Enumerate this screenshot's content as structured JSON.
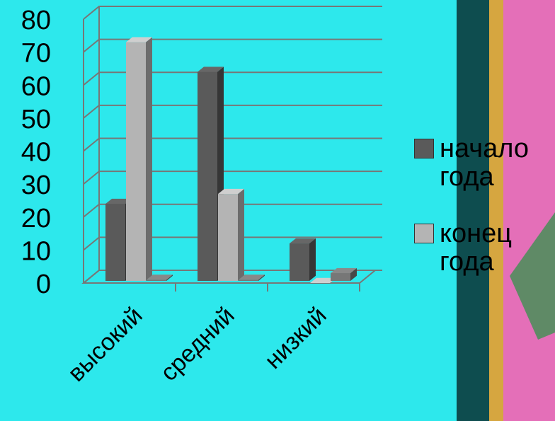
{
  "chart_data": {
    "type": "bar3d",
    "categories": [
      "высокий",
      "средний",
      "низкий"
    ],
    "series": [
      {
        "name": "начало года",
        "color": "#5a5a5a",
        "values": [
          24,
          64,
          12
        ]
      },
      {
        "name": "конец года",
        "color": "#b4b4b4",
        "values": [
          73,
          27,
          0
        ]
      },
      {
        "color": "#777777",
        "values": [
          1,
          1,
          3
        ]
      }
    ],
    "ylim": [
      0,
      80
    ],
    "yticks": [
      0,
      10,
      20,
      30,
      40,
      50,
      60,
      70,
      80
    ],
    "grid": true,
    "legend": "right"
  }
}
